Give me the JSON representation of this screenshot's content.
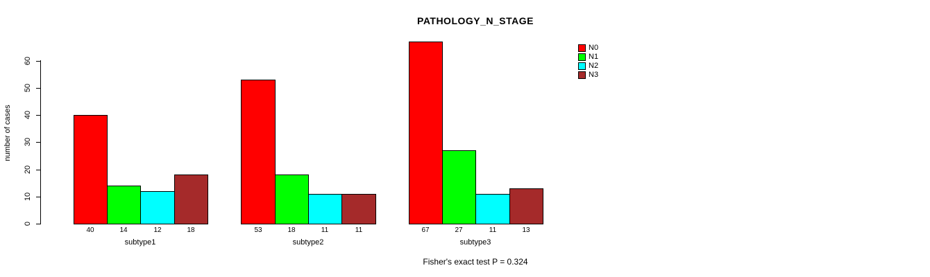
{
  "chart_data": {
    "type": "bar",
    "title": "PATHOLOGY_N_STAGE",
    "categories": [
      "subtype1",
      "subtype2",
      "subtype3"
    ],
    "series": [
      {
        "name": "N0",
        "color": "#FF0000",
        "values": [
          40,
          53,
          67
        ]
      },
      {
        "name": "N1",
        "color": "#00FF00",
        "values": [
          14,
          18,
          27
        ]
      },
      {
        "name": "N2",
        "color": "#00FFFF",
        "values": [
          12,
          11,
          11
        ]
      },
      {
        "name": "N3",
        "color": "#A52A2A",
        "values": [
          18,
          11,
          13
        ]
      }
    ],
    "bar_value_labels": {
      "subtype1": [
        40,
        14,
        12,
        18
      ],
      "subtype2": [
        53,
        18,
        11,
        11
      ],
      "subtype3": [
        67,
        27,
        11,
        13
      ]
    },
    "xlabel": "",
    "ylabel": "number of cases",
    "yticks": [
      0,
      10,
      20,
      30,
      40,
      50,
      60
    ],
    "ylim": [
      0,
      67
    ],
    "grid": false,
    "legend": {
      "position": "right",
      "entries": [
        "N0",
        "N1",
        "N2",
        "N3"
      ]
    },
    "annotation": "Fisher's exact test P = 0.324",
    "axis_color": "#000000",
    "bar_border_color": "#000000"
  }
}
